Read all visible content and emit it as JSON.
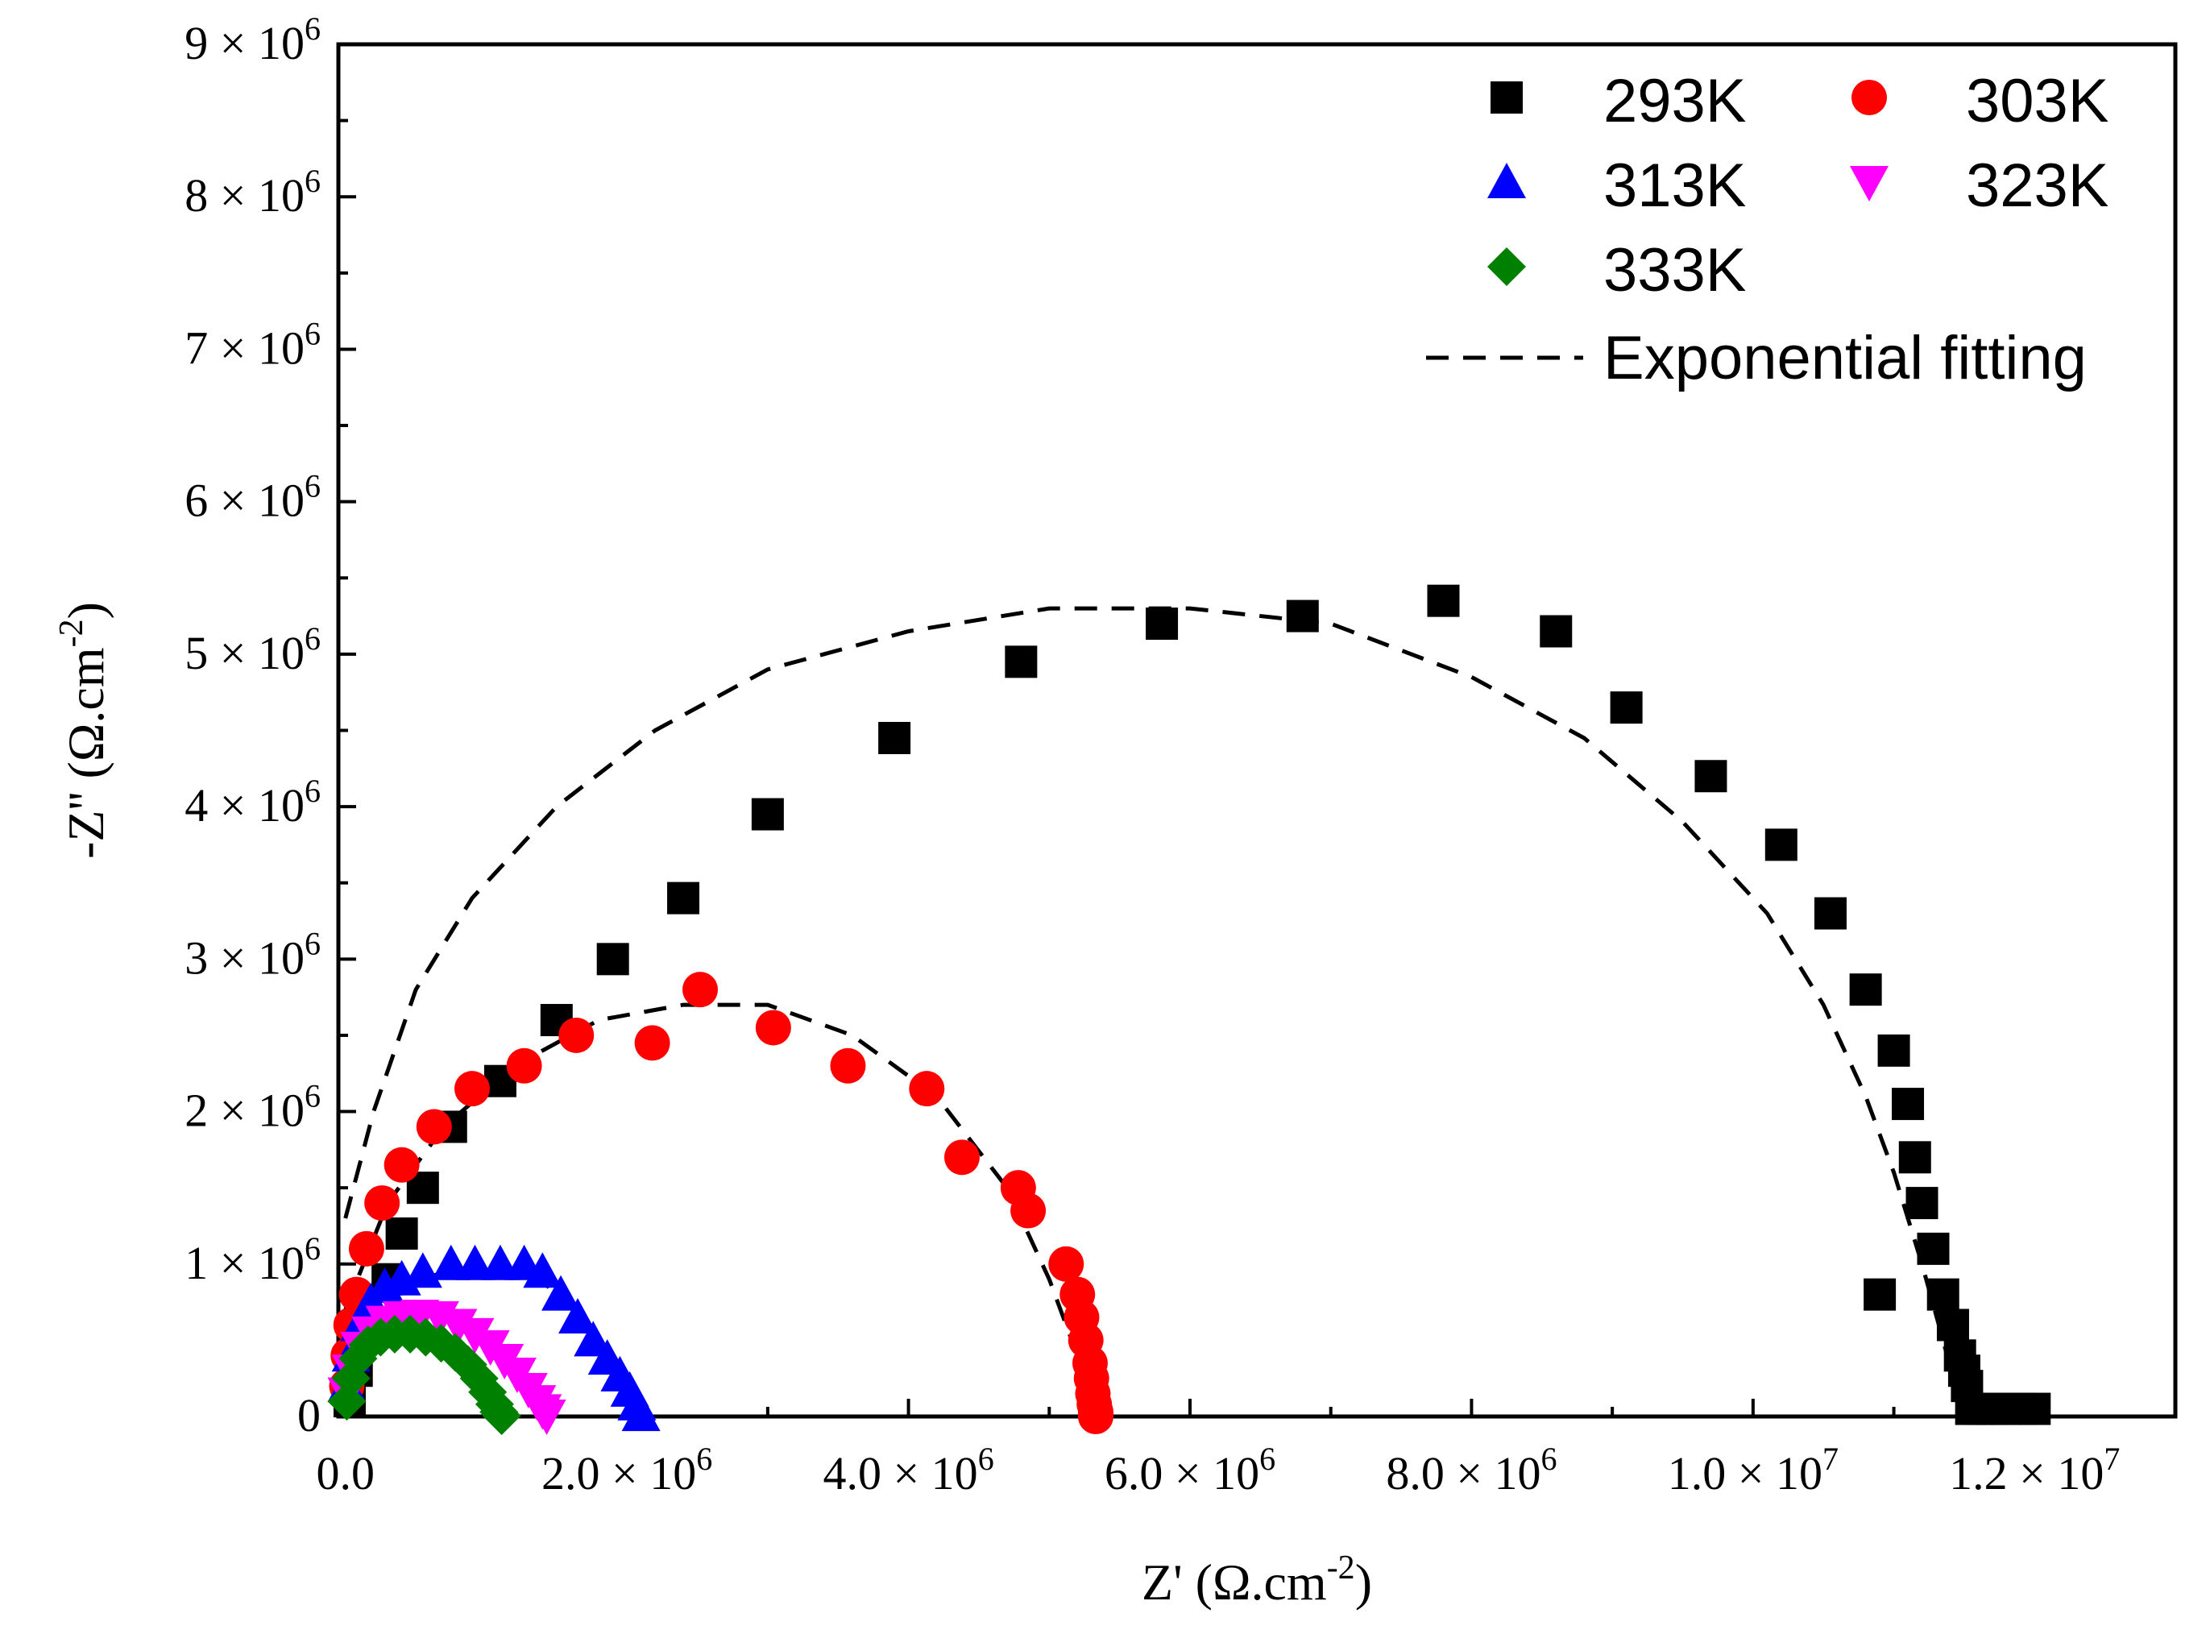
{
  "chart_data": {
    "type": "scatter",
    "xlabel": "Z' (Ω.cm",
    "xlabel_sup": "-2",
    "xlabel_close": ")",
    "ylabel": "-Z'' (Ω.cm",
    "ylabel_sup": "-2",
    "ylabel_close": ")",
    "xlim": [
      -50000,
      13000000
    ],
    "ylim": [
      0,
      9000000
    ],
    "x_ticks": [
      {
        "value": 0,
        "mantissa": "0.0",
        "exp": ""
      },
      {
        "value": 2000000,
        "mantissa": "2.0",
        "exp": "6"
      },
      {
        "value": 4000000,
        "mantissa": "4.0",
        "exp": "6"
      },
      {
        "value": 6000000,
        "mantissa": "6.0",
        "exp": "6"
      },
      {
        "value": 8000000,
        "mantissa": "8.0",
        "exp": "6"
      },
      {
        "value": 10000000,
        "mantissa": "1.0",
        "exp": "7"
      },
      {
        "value": 12000000,
        "mantissa": "1.2",
        "exp": "7"
      }
    ],
    "y_ticks": [
      {
        "value": 0,
        "mantissa": "0",
        "exp": ""
      },
      {
        "value": 1000000,
        "mantissa": "1",
        "exp": "6"
      },
      {
        "value": 2000000,
        "mantissa": "2",
        "exp": "6"
      },
      {
        "value": 3000000,
        "mantissa": "3",
        "exp": "6"
      },
      {
        "value": 4000000,
        "mantissa": "4",
        "exp": "6"
      },
      {
        "value": 5000000,
        "mantissa": "5",
        "exp": "6"
      },
      {
        "value": 6000000,
        "mantissa": "6",
        "exp": "6"
      },
      {
        "value": 7000000,
        "mantissa": "7",
        "exp": "6"
      },
      {
        "value": 8000000,
        "mantissa": "8",
        "exp": "6"
      },
      {
        "value": 9000000,
        "mantissa": "9",
        "exp": "6"
      }
    ],
    "times_symbol": "×",
    "tick_base": "10",
    "legend_position": "top-right",
    "series": [
      {
        "name": "293K",
        "marker": "square",
        "color": "#000000",
        "x": [
          30000,
          80000,
          130000,
          300000,
          400000,
          550000,
          750000,
          1100000,
          1500000,
          1900000,
          2400000,
          3000000,
          3900000,
          4800000,
          5800000,
          6800000,
          7800000,
          8600000,
          9100000,
          9700000,
          10200000,
          10550000,
          10800000,
          11000000,
          11100000,
          11150000,
          11200000,
          11280000,
          11350000,
          11420000,
          11470000,
          11500000,
          11520000,
          11550000,
          11600000,
          11650000,
          11700000,
          11800000,
          11900000,
          12000000
        ],
        "y": [
          100000,
          300000,
          600000,
          900000,
          1200000,
          1500000,
          1900000,
          2200000,
          2600000,
          3000000,
          3400000,
          3950000,
          4450000,
          4950000,
          5200000,
          5250000,
          5350000,
          5150000,
          4650000,
          4200000,
          3750000,
          3300000,
          2800000,
          2400000,
          2050000,
          1700000,
          1400000,
          1100000,
          800000,
          600000,
          400000,
          300000,
          200000,
          50000,
          50000,
          50000,
          50000,
          50000,
          50000,
          50000
        ],
        "extra": {
          "x": [
            10900000
          ],
          "y": [
            800000
          ]
        }
      },
      {
        "name": "303K",
        "marker": "circle",
        "color": "#ff0000",
        "x": [
          10000,
          20000,
          40000,
          80000,
          150000,
          260000,
          400000,
          630000,
          900000,
          1270000,
          1640000,
          2180000,
          2520000,
          3040000,
          3570000,
          4130000,
          4380000,
          4780000,
          4850000,
          5120000,
          5200000,
          5230000,
          5260000,
          5290000,
          5300000,
          5310000,
          5320000,
          5330000,
          5330000,
          5330000
        ],
        "y": [
          200000,
          400000,
          600000,
          800000,
          1100000,
          1400000,
          1650000,
          1900000,
          2150000,
          2300000,
          2500000,
          2450000,
          2800000,
          2550000,
          2300000,
          2150000,
          1700000,
          1500000,
          1350000,
          1000000,
          800000,
          650000,
          500000,
          350000,
          250000,
          150000,
          80000,
          30000,
          10000,
          0
        ]
      },
      {
        "name": "313K",
        "marker": "triangle-up",
        "color": "#0000ff",
        "x": [
          10000,
          40000,
          100000,
          180000,
          280000,
          400000,
          550000,
          750000,
          920000,
          1100000,
          1270000,
          1400000,
          1530000,
          1650000,
          1760000,
          1860000,
          1950000,
          2020000,
          2070000,
          2100000
        ],
        "y": [
          200000,
          400000,
          600000,
          750000,
          850000,
          900000,
          950000,
          1000000,
          1000000,
          1000000,
          1000000,
          950000,
          800000,
          650000,
          500000,
          380000,
          270000,
          170000,
          80000,
          10000
        ]
      },
      {
        "name": "323K",
        "marker": "triangle-down",
        "color": "#ff00ff",
        "x": [
          10000,
          40000,
          100000,
          180000,
          280000,
          400000,
          530000,
          670000,
          800000,
          920000,
          1030000,
          1130000,
          1220000,
          1300000,
          1360000,
          1400000,
          1430000
        ],
        "y": [
          150000,
          300000,
          450000,
          550000,
          620000,
          650000,
          660000,
          650000,
          600000,
          540000,
          460000,
          370000,
          280000,
          180000,
          100000,
          40000,
          5000
        ]
      },
      {
        "name": "333K",
        "marker": "diamond",
        "color": "#008000",
        "x": [
          10000,
          40000,
          90000,
          160000,
          250000,
          350000,
          460000,
          570000,
          680000,
          780000,
          870000,
          950000,
          1010000,
          1060000,
          1090000,
          1110000
        ],
        "y": [
          100000,
          250000,
          380000,
          470000,
          520000,
          540000,
          540000,
          520000,
          480000,
          420000,
          340000,
          250000,
          160000,
          80000,
          30000,
          5000
        ]
      }
    ],
    "fit_label": "Exponential fitting",
    "fits": [
      {
        "name": "fit-293K",
        "x": [
          0,
          200000,
          500000,
          900000,
          1500000,
          2200000,
          3000000,
          4000000,
          5000000,
          6000000,
          7000000,
          8000000,
          8800000,
          9500000,
          10100000,
          10500000,
          10800000,
          11000000,
          11200000,
          11350000,
          11450000,
          11500000
        ],
        "y": [
          1300000,
          2000000,
          2800000,
          3400000,
          4000000,
          4500000,
          4900000,
          5150000,
          5300000,
          5300000,
          5200000,
          4850000,
          4450000,
          3900000,
          3300000,
          2700000,
          2100000,
          1600000,
          1000000,
          500000,
          150000,
          0
        ]
      },
      {
        "name": "fit-303K",
        "x": [
          0,
          300000,
          700000,
          1200000,
          1800000,
          2400000,
          3000000,
          3600000,
          4200000,
          4700000,
          5000000,
          5200000,
          5300000,
          5350000
        ],
        "y": [
          700000,
          1400000,
          1900000,
          2300000,
          2600000,
          2700000,
          2700000,
          2500000,
          2100000,
          1500000,
          900000,
          400000,
          100000,
          0
        ]
      },
      {
        "name": "fit-313K",
        "x": [
          0,
          200000,
          500000,
          900000,
          1300000,
          1600000,
          1850000,
          2000000,
          2100000
        ],
        "y": [
          400000,
          700000,
          900000,
          980000,
          940000,
          750000,
          450000,
          200000,
          0
        ]
      },
      {
        "name": "fit-323K",
        "x": [
          0,
          200000,
          500000,
          800000,
          1050000,
          1250000,
          1380000,
          1450000
        ],
        "y": [
          350000,
          550000,
          650000,
          640000,
          500000,
          300000,
          100000,
          0
        ]
      },
      {
        "name": "fit-333K",
        "x": [
          0,
          200000,
          450000,
          700000,
          900000,
          1050000,
          1120000
        ],
        "y": [
          300000,
          470000,
          540000,
          500000,
          350000,
          150000,
          0
        ]
      }
    ]
  }
}
